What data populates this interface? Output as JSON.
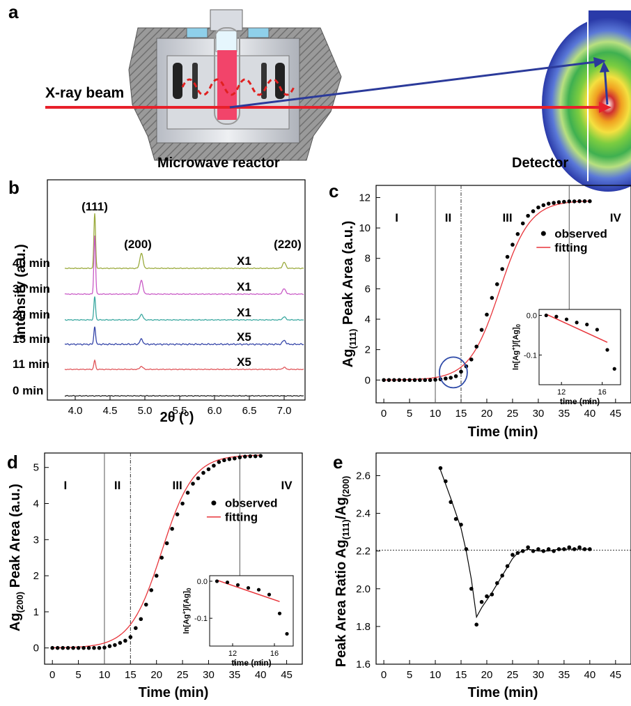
{
  "panels": {
    "a": {
      "label": "a",
      "beam_label": "X-ray beam",
      "reactor_label": "Microwave reactor",
      "detector_label": "Detector"
    },
    "b": {
      "label": "b"
    },
    "c": {
      "label": "c"
    },
    "d": {
      "label": "d"
    },
    "e": {
      "label": "e"
    }
  },
  "colors": {
    "beam": "#e8202a",
    "scatter_arrow": "#2b3a9a",
    "fit": "#e8343a",
    "points": "#000000",
    "circle": "#2e4aa8",
    "pattern_colors": [
      "#9aaa3c",
      "#c95ac6",
      "#3aa8a0",
      "#3444a8",
      "#e05458",
      "#222222"
    ]
  },
  "chart_data": [
    {
      "panel": "b",
      "type": "line",
      "xlabel": "2θ (°)",
      "ylabel": "Intensity (a.u.)",
      "xlim": [
        3.6,
        7.3
      ],
      "xticks": [
        "4.0",
        "4.5",
        "5.0",
        "5.5",
        "6.0",
        "6.5",
        "7.0"
      ],
      "xtick_values": [
        4.0,
        4.5,
        5.0,
        5.5,
        6.0,
        6.5,
        7.0
      ],
      "peak_positions": [
        4.28,
        4.95,
        7.0
      ],
      "peak_labels": [
        "(111)",
        "(200)",
        "(220)"
      ],
      "series": [
        {
          "name": "40 min",
          "scale": "X1",
          "peak_heights": [
            5.4,
            1.5,
            0.6
          ]
        },
        {
          "name": "30 min",
          "scale": "X1",
          "peak_heights": [
            5.8,
            1.35,
            0.55
          ]
        },
        {
          "name": "20 min",
          "scale": "X1",
          "peak_heights": [
            2.3,
            0.55,
            0.3
          ]
        },
        {
          "name": "15 min",
          "scale": "X5",
          "peak_heights": [
            1.8,
            0.5,
            0.4
          ]
        },
        {
          "name": "11 min",
          "scale": "X5",
          "peak_heights": [
            0.9,
            0.3,
            0.2
          ]
        },
        {
          "name": "0 min",
          "scale": "",
          "peak_heights": [
            0,
            0,
            0
          ]
        }
      ]
    },
    {
      "panel": "c",
      "type": "scatter",
      "xlabel": "Time (min)",
      "ylabel": "Ag(111) Peak Area (a.u.)",
      "ylabel_main": "Ag",
      "ylabel_sub": "(111)",
      "ylabel_rest": " Peak Area (a.u.)",
      "xlim": [
        -1.5,
        48
      ],
      "ylim": [
        -1.5,
        12.8
      ],
      "xticks": [
        0,
        5,
        10,
        15,
        20,
        25,
        30,
        35,
        40,
        45
      ],
      "yticks": [
        0,
        2,
        4,
        6,
        8,
        10,
        12
      ],
      "regions": [
        "I",
        "II",
        "III",
        "IV"
      ],
      "region_x": [
        2.5,
        12.5,
        24,
        45
      ],
      "boundaries": [
        10,
        15,
        36
      ],
      "legend": [
        "observed",
        "fitting"
      ],
      "fit": {
        "plateau": 11.8,
        "k": 0.34,
        "t0": 22.5
      },
      "x": [
        0,
        1,
        2,
        3,
        4,
        5,
        6,
        7,
        8,
        9,
        10,
        11,
        12,
        13,
        14,
        15,
        16,
        17,
        18,
        19,
        20,
        21,
        22,
        23,
        24,
        25,
        26,
        27,
        28,
        29,
        30,
        31,
        32,
        33,
        34,
        35,
        36,
        37,
        38,
        39,
        40
      ],
      "y": [
        0,
        0,
        0,
        0,
        0,
        0,
        0,
        0,
        0,
        0,
        0.02,
        0.05,
        0.1,
        0.15,
        0.25,
        0.55,
        0.9,
        1.35,
        2.2,
        3.3,
        4.3,
        5.4,
        6.3,
        7.3,
        8.1,
        8.9,
        9.6,
        10.3,
        10.8,
        11.1,
        11.35,
        11.5,
        11.6,
        11.65,
        11.7,
        11.72,
        11.75,
        11.75,
        11.76,
        11.76,
        11.76
      ],
      "inset": {
        "xlabel": "time (min)",
        "ylabel": "ln[Ag+]/[Ag]0",
        "xlim": [
          9.8,
          17.8
        ],
        "ylim": [
          -0.175,
          0.015
        ],
        "xticks": [
          12,
          16
        ],
        "yticks": [
          "0.0",
          "-0.1"
        ],
        "ytick_values": [
          0.0,
          -0.1
        ],
        "x": [
          10.5,
          11.5,
          12.5,
          13.5,
          14.5,
          15.5,
          16.5,
          17.2
        ],
        "y": [
          0.0,
          -0.003,
          -0.01,
          -0.018,
          -0.023,
          -0.036,
          -0.087,
          -0.135
        ],
        "fit_x": [
          10.5,
          16.5
        ],
        "fit_y": [
          0.003,
          -0.068
        ]
      }
    },
    {
      "panel": "d",
      "type": "scatter",
      "xlabel": "Time (min)",
      "ylabel": "Ag(200) Peak Area (a.u.)",
      "ylabel_main": "Ag",
      "ylabel_sub": "(200)",
      "ylabel_rest": " Peak Area (a.u.)",
      "xlim": [
        -1.5,
        48
      ],
      "ylim": [
        -0.45,
        5.4
      ],
      "xticks": [
        0,
        5,
        10,
        15,
        20,
        25,
        30,
        35,
        40,
        45
      ],
      "yticks": [
        0,
        1,
        2,
        3,
        4,
        5
      ],
      "regions": [
        "I",
        "II",
        "III",
        "IV"
      ],
      "region_x": [
        2.5,
        12.5,
        24,
        45
      ],
      "boundaries": [
        10,
        15,
        36
      ],
      "legend": [
        "observed",
        "fitting"
      ],
      "fit": {
        "plateau": 5.35,
        "k": 0.33,
        "t0": 21.0
      },
      "x": [
        0,
        1,
        2,
        3,
        4,
        5,
        6,
        7,
        8,
        9,
        10,
        11,
        12,
        13,
        14,
        15,
        16,
        17,
        18,
        19,
        20,
        21,
        22,
        23,
        24,
        25,
        26,
        27,
        28,
        29,
        30,
        31,
        32,
        33,
        34,
        35,
        36,
        37,
        38,
        39,
        40
      ],
      "y": [
        0,
        0,
        0,
        0,
        0,
        0,
        0,
        0,
        0,
        0,
        0.01,
        0.05,
        0.08,
        0.14,
        0.2,
        0.3,
        0.55,
        0.8,
        1.2,
        1.6,
        2.0,
        2.5,
        2.9,
        3.3,
        3.7,
        4.0,
        4.3,
        4.55,
        4.7,
        4.85,
        4.95,
        5.05,
        5.15,
        5.2,
        5.23,
        5.25,
        5.28,
        5.3,
        5.31,
        5.31,
        5.32
      ],
      "inset": {
        "xlabel": "time (min)",
        "ylabel": "ln[Ag+]/[Ag]0",
        "xlim": [
          9.8,
          17.8
        ],
        "ylim": [
          -0.175,
          0.015
        ],
        "xticks": [
          12,
          16
        ],
        "yticks": [
          "0.0",
          "-0.1"
        ],
        "ytick_values": [
          0.0,
          -0.1
        ],
        "x": [
          10.5,
          11.5,
          12.5,
          13.5,
          14.5,
          15.5,
          16.5,
          17.2
        ],
        "y": [
          0.0,
          -0.003,
          -0.01,
          -0.018,
          -0.023,
          -0.036,
          -0.087,
          -0.142
        ],
        "fit_x": [
          10.5,
          16.5
        ],
        "fit_y": [
          0.003,
          -0.055
        ]
      }
    },
    {
      "panel": "e",
      "type": "line",
      "xlabel": "Time (min)",
      "ylabel": "Peak Area Ratio Ag(111)/Ag(200)",
      "ylabel_a": "Peak Area Ratio Ag",
      "ylabel_sub1": "(111)",
      "ylabel_b": "/Ag",
      "ylabel_sub2": "(200)",
      "xlim": [
        -1.5,
        48
      ],
      "ylim": [
        1.6,
        2.72
      ],
      "xticks": [
        0,
        5,
        10,
        15,
        20,
        25,
        30,
        35,
        40,
        45
      ],
      "yticks": [
        "1.6",
        "1.8",
        "2.0",
        "2.2",
        "2.4",
        "2.6"
      ],
      "ytick_values": [
        1.6,
        1.8,
        2.0,
        2.2,
        2.4,
        2.6
      ],
      "reference_y": 2.205,
      "x": [
        11,
        12,
        13,
        14,
        15,
        16,
        17,
        18,
        19,
        20,
        21,
        22,
        23,
        24,
        25,
        26,
        27,
        28,
        29,
        30,
        31,
        32,
        33,
        34,
        35,
        36,
        37,
        38,
        39,
        40
      ],
      "y": [
        2.64,
        2.57,
        2.46,
        2.37,
        2.34,
        2.21,
        2.0,
        1.81,
        1.93,
        1.96,
        1.97,
        2.03,
        2.07,
        2.12,
        2.18,
        2.19,
        2.2,
        2.22,
        2.2,
        2.21,
        2.2,
        2.21,
        2.2,
        2.21,
        2.21,
        2.22,
        2.21,
        2.22,
        2.21,
        2.21
      ],
      "curve_x": [
        11,
        13,
        15,
        16,
        17,
        18,
        19,
        21,
        23,
        25,
        26,
        28,
        30,
        32,
        34,
        36,
        38,
        40
      ],
      "curve_y": [
        2.63,
        2.48,
        2.32,
        2.2,
        2.05,
        1.85,
        1.9,
        1.98,
        2.07,
        2.16,
        2.19,
        2.21,
        2.2,
        2.2,
        2.21,
        2.21,
        2.21,
        2.21
      ]
    }
  ]
}
